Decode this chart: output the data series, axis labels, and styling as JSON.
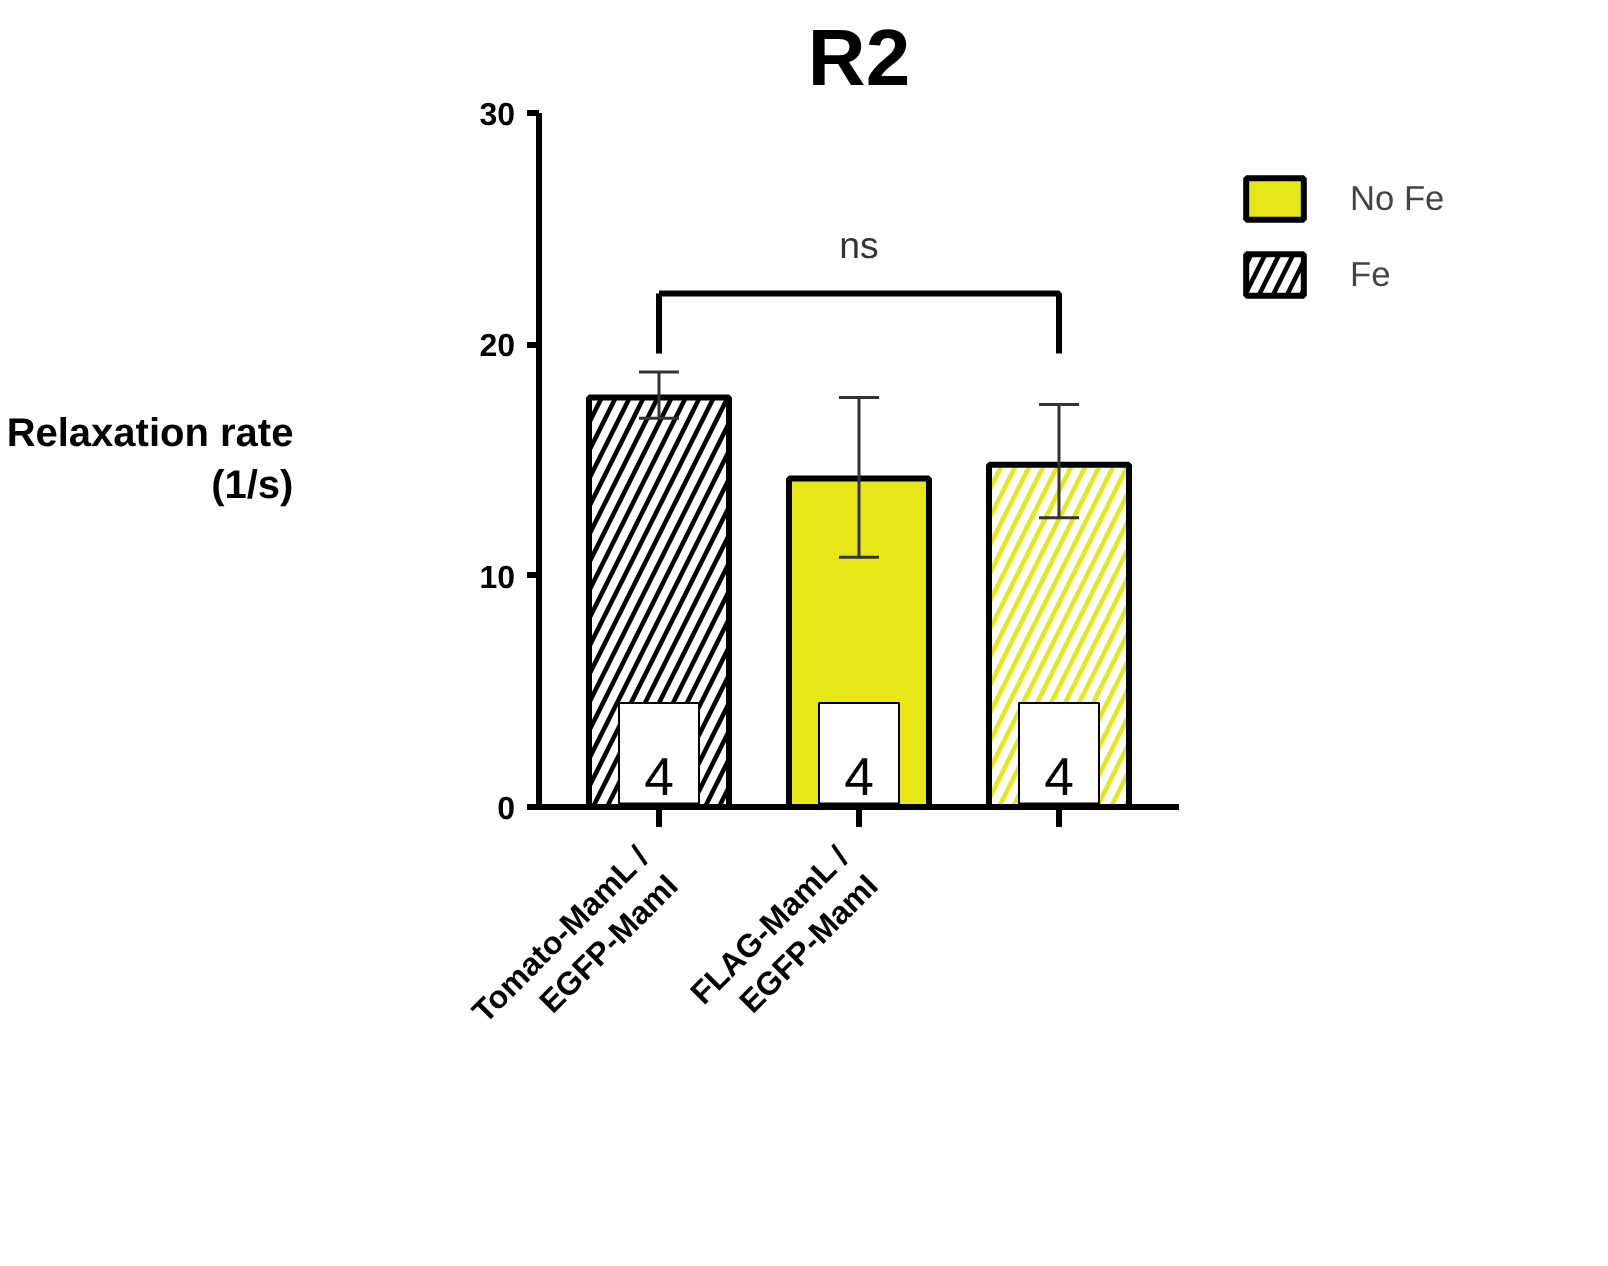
{
  "chart_data": {
    "type": "bar",
    "title": "R2",
    "ylabel": "Relaxation rate\n(1/s)",
    "categories": [
      "Tomato-MamL /\nEGFP-MamI",
      "FLAG-MamL /\nEGFP-MamI",
      null
    ],
    "series": [
      {
        "name": "No Fe",
        "color": "#ffffff",
        "colors": [
          null,
          "#e6e619",
          null
        ],
        "values": [
          null,
          14.2,
          null
        ],
        "errors": [
          null,
          [
            10.8,
            17.7
          ],
          null
        ]
      },
      {
        "name": "Fe",
        "color": "#000000",
        "colors": [
          "#000000",
          null,
          "#e6e619"
        ],
        "values": [
          17.7,
          null,
          14.8
        ],
        "errors": [
          [
            16.8,
            18.8
          ],
          null,
          [
            12.5,
            17.4
          ]
        ]
      }
    ],
    "ylim": [
      0,
      30
    ],
    "yticks": [
      0,
      10,
      20,
      30
    ],
    "legend": "top right",
    "grid": false,
    "annotations": [
      "ns",
      "4",
      "4",
      "4"
    ]
  }
}
